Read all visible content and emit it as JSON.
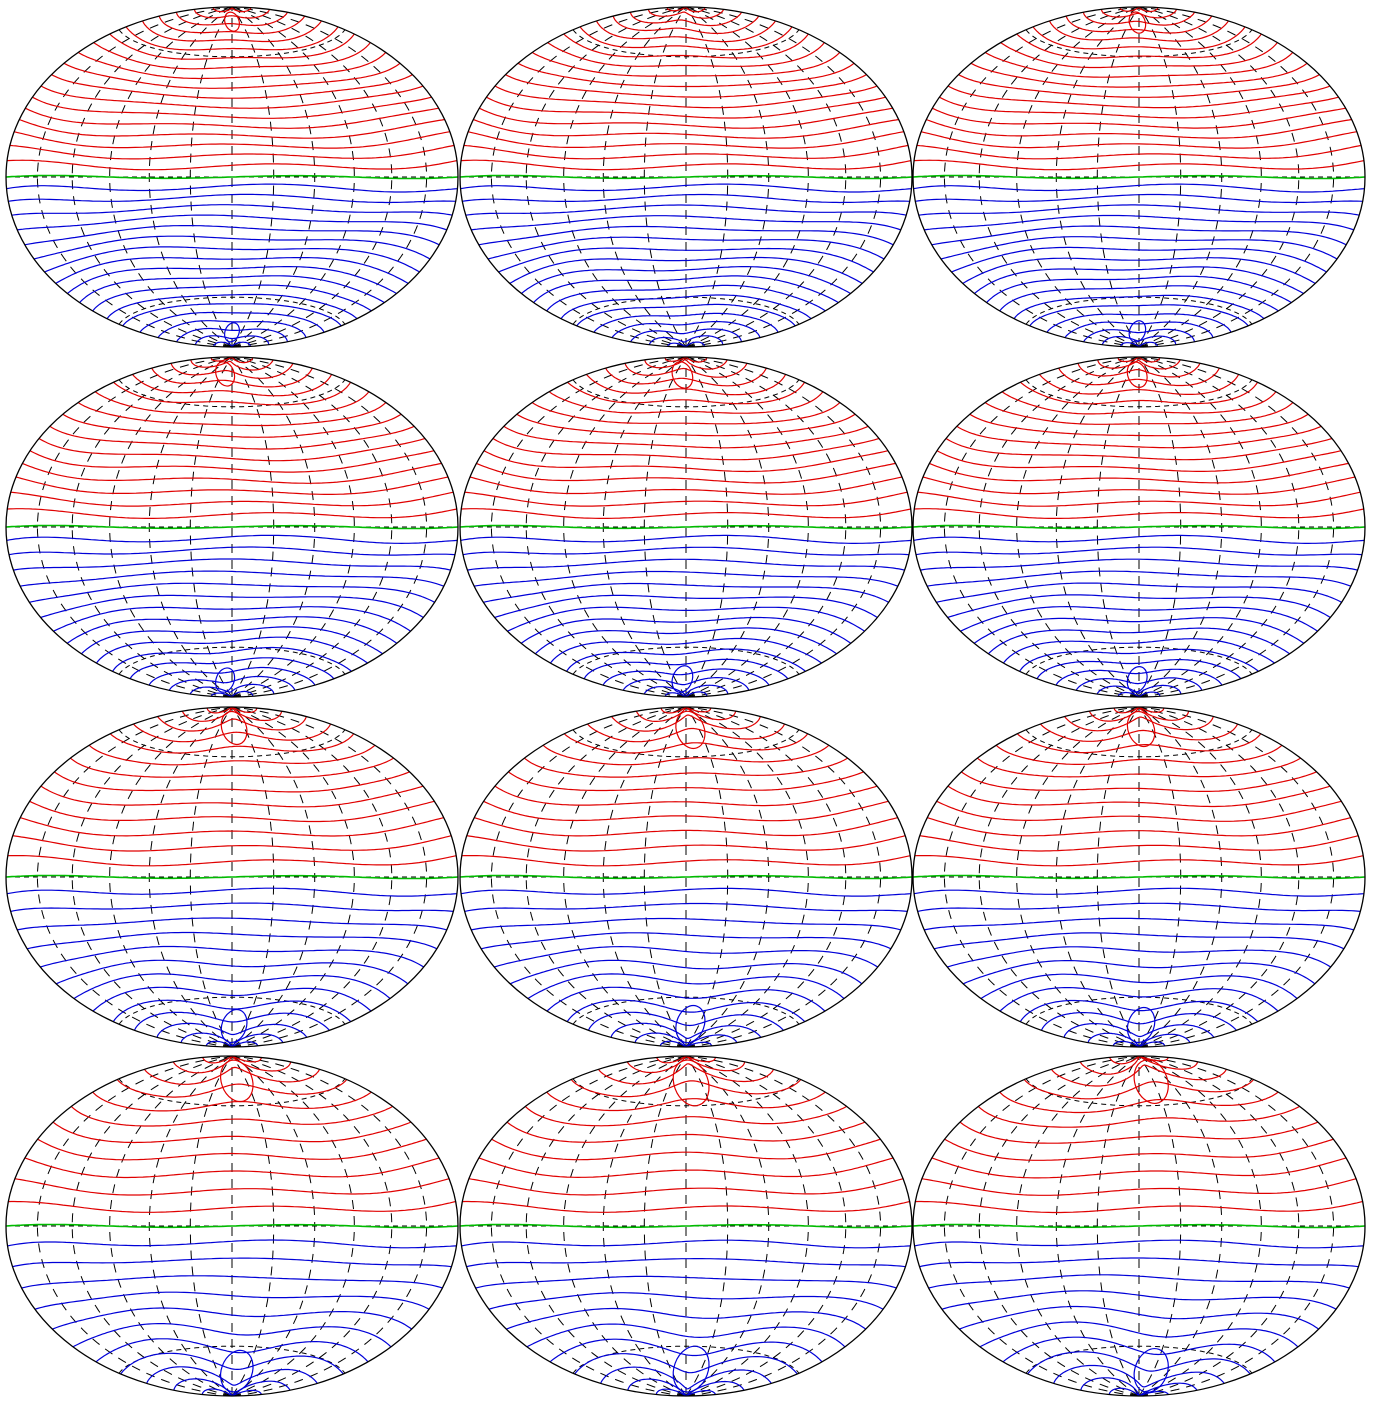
{
  "figure": {
    "rows": 4,
    "cols": 3,
    "projection": "hammer-aitoff",
    "colors": {
      "positive": "#e00000",
      "negative": "#0000d8",
      "zero": "#00bb00",
      "outline": "#000000",
      "graticule": "#000000",
      "background": "#ffffff"
    },
    "graticule": {
      "meridians_deg": [
        -180,
        -150,
        -120,
        -90,
        -60,
        -30,
        0,
        30,
        60,
        90,
        120,
        150,
        180
      ],
      "parallels_deg": [
        -60,
        0,
        60
      ],
      "line_style": "dashed"
    },
    "panels": [
      {
        "id": "r1c1",
        "lines_per_hemisphere": 18,
        "lobe_longitude_deg": 0,
        "lobe_strength": 0.05,
        "closed_loop": true
      },
      {
        "id": "r1c2",
        "lines_per_hemisphere": 18,
        "lobe_longitude_deg": -15,
        "lobe_strength": 0.08,
        "closed_loop": false
      },
      {
        "id": "r1c3",
        "lines_per_hemisphere": 18,
        "lobe_longitude_deg": -5,
        "lobe_strength": 0.07,
        "closed_loop": true
      },
      {
        "id": "r2c1",
        "lines_per_hemisphere": 16,
        "lobe_longitude_deg": -20,
        "lobe_strength": 0.1,
        "closed_loop": true
      },
      {
        "id": "r2c2",
        "lines_per_hemisphere": 16,
        "lobe_longitude_deg": -10,
        "lobe_strength": 0.12,
        "closed_loop": true
      },
      {
        "id": "r2c3",
        "lines_per_hemisphere": 16,
        "lobe_longitude_deg": -5,
        "lobe_strength": 0.11,
        "closed_loop": true
      },
      {
        "id": "r3c1",
        "lines_per_hemisphere": 13,
        "lobe_longitude_deg": 5,
        "lobe_strength": 0.18,
        "closed_loop": true
      },
      {
        "id": "r3c2",
        "lines_per_hemisphere": 13,
        "lobe_longitude_deg": 10,
        "lobe_strength": 0.22,
        "closed_loop": true
      },
      {
        "id": "r3c3",
        "lines_per_hemisphere": 13,
        "lobe_longitude_deg": 5,
        "lobe_strength": 0.2,
        "closed_loop": true
      },
      {
        "id": "r4c1",
        "lines_per_hemisphere": 11,
        "lobe_longitude_deg": 10,
        "lobe_strength": 0.26,
        "closed_loop": true
      },
      {
        "id": "r4c2",
        "lines_per_hemisphere": 11,
        "lobe_longitude_deg": 10,
        "lobe_strength": 0.3,
        "closed_loop": true
      },
      {
        "id": "r4c3",
        "lines_per_hemisphere": 11,
        "lobe_longitude_deg": 25,
        "lobe_strength": 0.28,
        "closed_loop": true
      }
    ]
  }
}
